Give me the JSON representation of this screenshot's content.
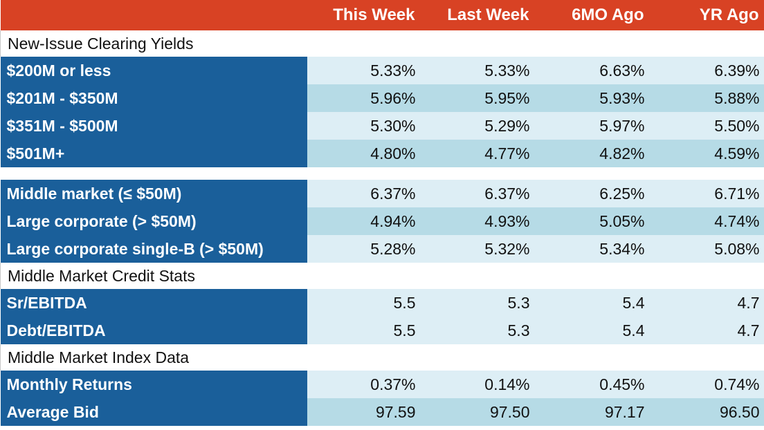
{
  "header": {
    "corner": "",
    "columns": [
      "This Week",
      "Last Week",
      "6MO Ago",
      "YR Ago"
    ]
  },
  "sections": [
    {
      "title": "New-Issue Clearing Yields",
      "rows": [
        {
          "label": "$200M or less",
          "values": [
            "5.33%",
            "5.33%",
            "6.63%",
            "6.39%"
          ]
        },
        {
          "label": "$201M - $350M",
          "values": [
            "5.96%",
            "5.95%",
            "5.93%",
            "5.88%"
          ]
        },
        {
          "label": "$351M - $500M",
          "values": [
            "5.30%",
            "5.29%",
            "5.97%",
            "5.50%"
          ]
        },
        {
          "label": "$501M+",
          "values": [
            "4.80%",
            "4.77%",
            "4.82%",
            "4.59%"
          ]
        }
      ]
    },
    {
      "title": "",
      "rows": [
        {
          "label": "Middle market (≤ $50M)",
          "values": [
            "6.37%",
            "6.37%",
            "6.25%",
            "6.71%"
          ]
        },
        {
          "label": "Large corporate (> $50M)",
          "values": [
            "4.94%",
            "4.93%",
            "5.05%",
            "4.74%"
          ]
        },
        {
          "label": "Large corporate single-B (> $50M)",
          "values": [
            "5.28%",
            "5.32%",
            "5.34%",
            "5.08%"
          ]
        }
      ]
    },
    {
      "title": "Middle Market Credit Stats",
      "rows": [
        {
          "label": "Sr/EBITDA",
          "values": [
            "5.5",
            "5.3",
            "5.4",
            "4.7"
          ]
        },
        {
          "label": "Debt/EBITDA",
          "values": [
            "5.5",
            "5.3",
            "5.4",
            "4.7"
          ]
        }
      ]
    },
    {
      "title": "Middle Market Index Data",
      "rows": [
        {
          "label": "Monthly Returns",
          "values": [
            "0.37%",
            "0.14%",
            "0.45%",
            "0.74%"
          ]
        },
        {
          "label": "Average Bid",
          "values": [
            "97.59",
            "97.50",
            "97.17",
            "96.50"
          ]
        }
      ]
    }
  ],
  "colors": {
    "header_bg": "#d84224",
    "label_bg": "#1a5f9a",
    "row_light": "#ddeef5",
    "row_dark": "#b6dbe6"
  }
}
